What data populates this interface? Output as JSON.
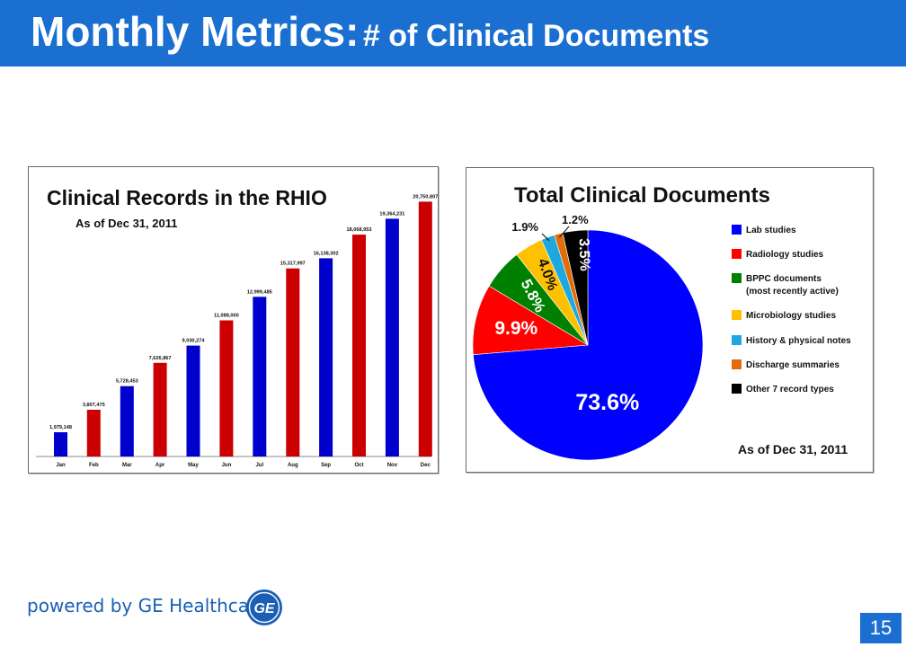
{
  "header": {
    "title_main": "Monthly Metrics:",
    "title_sub": "# of Clinical Documents",
    "color": "#1a6fd0"
  },
  "chart_data": [
    {
      "type": "bar",
      "title": "Clinical Records in the RHIO",
      "subtitle": "As of Dec 31, 2011",
      "categories": [
        "Jan",
        "Feb",
        "Mar",
        "Apr",
        "May",
        "Jun",
        "Jul",
        "Aug",
        "Sep",
        "Oct",
        "Nov",
        "Dec"
      ],
      "values": [
        1979148,
        3807475,
        5728453,
        7626867,
        9030274,
        11088000,
        12999485,
        15317997,
        16138302,
        18068953,
        19364231,
        20750807
      ],
      "value_labels": [
        "1,979,148",
        "3,807,475",
        "5,728,453",
        "7,626,867",
        "9,030,274",
        "11,088,000",
        "12,999,485",
        "15,317,997",
        "16,138,302",
        "18,068,953",
        "19,364,231",
        "20,750,807"
      ],
      "bar_colors": [
        "#0000cc",
        "#cc0000",
        "#0000cc",
        "#cc0000",
        "#0000cc",
        "#cc0000",
        "#0000cc",
        "#cc0000",
        "#0000cc",
        "#cc0000",
        "#0000cc",
        "#cc0000"
      ],
      "xlabel": "",
      "ylabel": "",
      "ylim": [
        0,
        21000000
      ],
      "grid": false
    },
    {
      "type": "pie",
      "title": "Total Clinical Documents",
      "footnote": "As of Dec 31, 2011",
      "legend_position": "right",
      "slices": [
        {
          "label": "Lab studies",
          "value": 73.6,
          "text": "73.6%",
          "color": "#0000ff"
        },
        {
          "label": "Radiology studies",
          "value": 9.9,
          "text": "9.9%",
          "color": "#ff0000"
        },
        {
          "label": "BPPC documents",
          "label2": "(most recently active)",
          "value": 5.8,
          "text": "5.8%",
          "color": "#008000"
        },
        {
          "label": "Microbiology studies",
          "value": 4.0,
          "text": "4.0%",
          "color": "#ffc000"
        },
        {
          "label": "History & physical notes",
          "value": 1.9,
          "text": "1.9%",
          "color": "#1ea8e0"
        },
        {
          "label": "Discharge summaries",
          "value": 1.2,
          "text": "1.2%",
          "color": "#e36c0a"
        },
        {
          "label": "Other 7 record types",
          "value": 3.5,
          "text": "3.5%",
          "color": "#000000"
        }
      ]
    }
  ],
  "footer": {
    "powered_by": "powered by GE Healthcare",
    "logo_text": "GE",
    "page_number": "15"
  }
}
